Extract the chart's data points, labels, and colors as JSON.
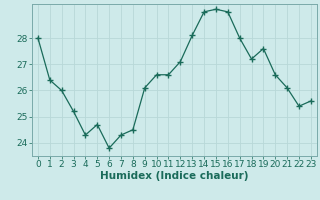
{
  "x": [
    0,
    1,
    2,
    3,
    4,
    5,
    6,
    7,
    8,
    9,
    10,
    11,
    12,
    13,
    14,
    15,
    16,
    17,
    18,
    19,
    20,
    21,
    22,
    23
  ],
  "y": [
    28.0,
    26.4,
    26.0,
    25.2,
    24.3,
    24.7,
    23.8,
    24.3,
    24.5,
    26.1,
    26.6,
    26.6,
    27.1,
    28.1,
    29.0,
    29.1,
    29.0,
    28.0,
    27.2,
    27.6,
    26.6,
    26.1,
    25.4,
    25.6
  ],
  "line_color": "#1a6b5a",
  "marker": "D",
  "marker_size": 2.5,
  "bg_color": "#ceeaea",
  "grid_color": "#b8d8d8",
  "xlabel": "Humidex (Indice chaleur)",
  "ylim": [
    23.5,
    29.3
  ],
  "xlim": [
    -0.5,
    23.5
  ],
  "yticks": [
    24,
    25,
    26,
    27,
    28
  ],
  "xticks": [
    0,
    1,
    2,
    3,
    4,
    5,
    6,
    7,
    8,
    9,
    10,
    11,
    12,
    13,
    14,
    15,
    16,
    17,
    18,
    19,
    20,
    21,
    22,
    23
  ],
  "tick_color": "#1a6b5a",
  "tick_fontsize": 6.5,
  "xlabel_fontsize": 7.5,
  "spine_color": "#7aaaaa"
}
